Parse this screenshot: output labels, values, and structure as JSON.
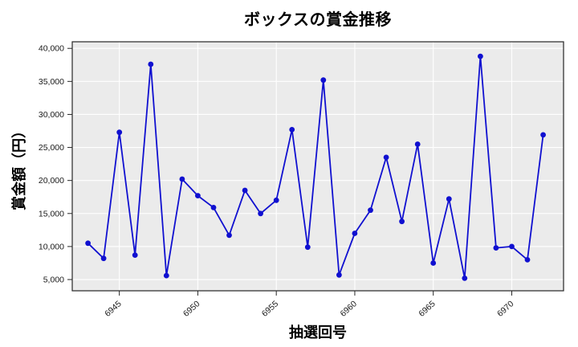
{
  "figure": {
    "title": "ボックスの賞金推移",
    "xlabel": "抽選回号",
    "ylabel": "賞金額（円）"
  },
  "chart_data": {
    "type": "line",
    "title": "ボックスの賞金推移",
    "xlabel": "抽選回号",
    "ylabel": "賞金額（円）",
    "x": [
      6943,
      6944,
      6945,
      6946,
      6947,
      6948,
      6949,
      6950,
      6951,
      6952,
      6953,
      6954,
      6955,
      6956,
      6957,
      6958,
      6959,
      6960,
      6961,
      6962,
      6963,
      6964,
      6965,
      6966,
      6967,
      6968,
      6969,
      6970,
      6971,
      6972
    ],
    "values": [
      10500,
      8200,
      27300,
      8700,
      37600,
      5600,
      20200,
      17700,
      15900,
      11700,
      18500,
      15000,
      17000,
      27700,
      9900,
      35200,
      5700,
      12000,
      15500,
      23500,
      13800,
      25500,
      7500,
      17200,
      5200,
      38800,
      9800,
      10000,
      8000,
      26900
    ],
    "xticks": [
      6945,
      6950,
      6955,
      6960,
      6965,
      6970
    ],
    "yticks": [
      5000,
      10000,
      15000,
      20000,
      25000,
      30000,
      35000,
      40000
    ],
    "xlim": [
      6942,
      6973.3
    ],
    "ylim": [
      3300,
      41000
    ],
    "grid": true,
    "legend": false,
    "colors": {
      "line": "#1010d0",
      "marker": "#1010d0",
      "plot_bg": "#ebebeb",
      "grid": "#ffffff",
      "frame": "#262626",
      "tick_text": "#1a1a1a"
    }
  }
}
